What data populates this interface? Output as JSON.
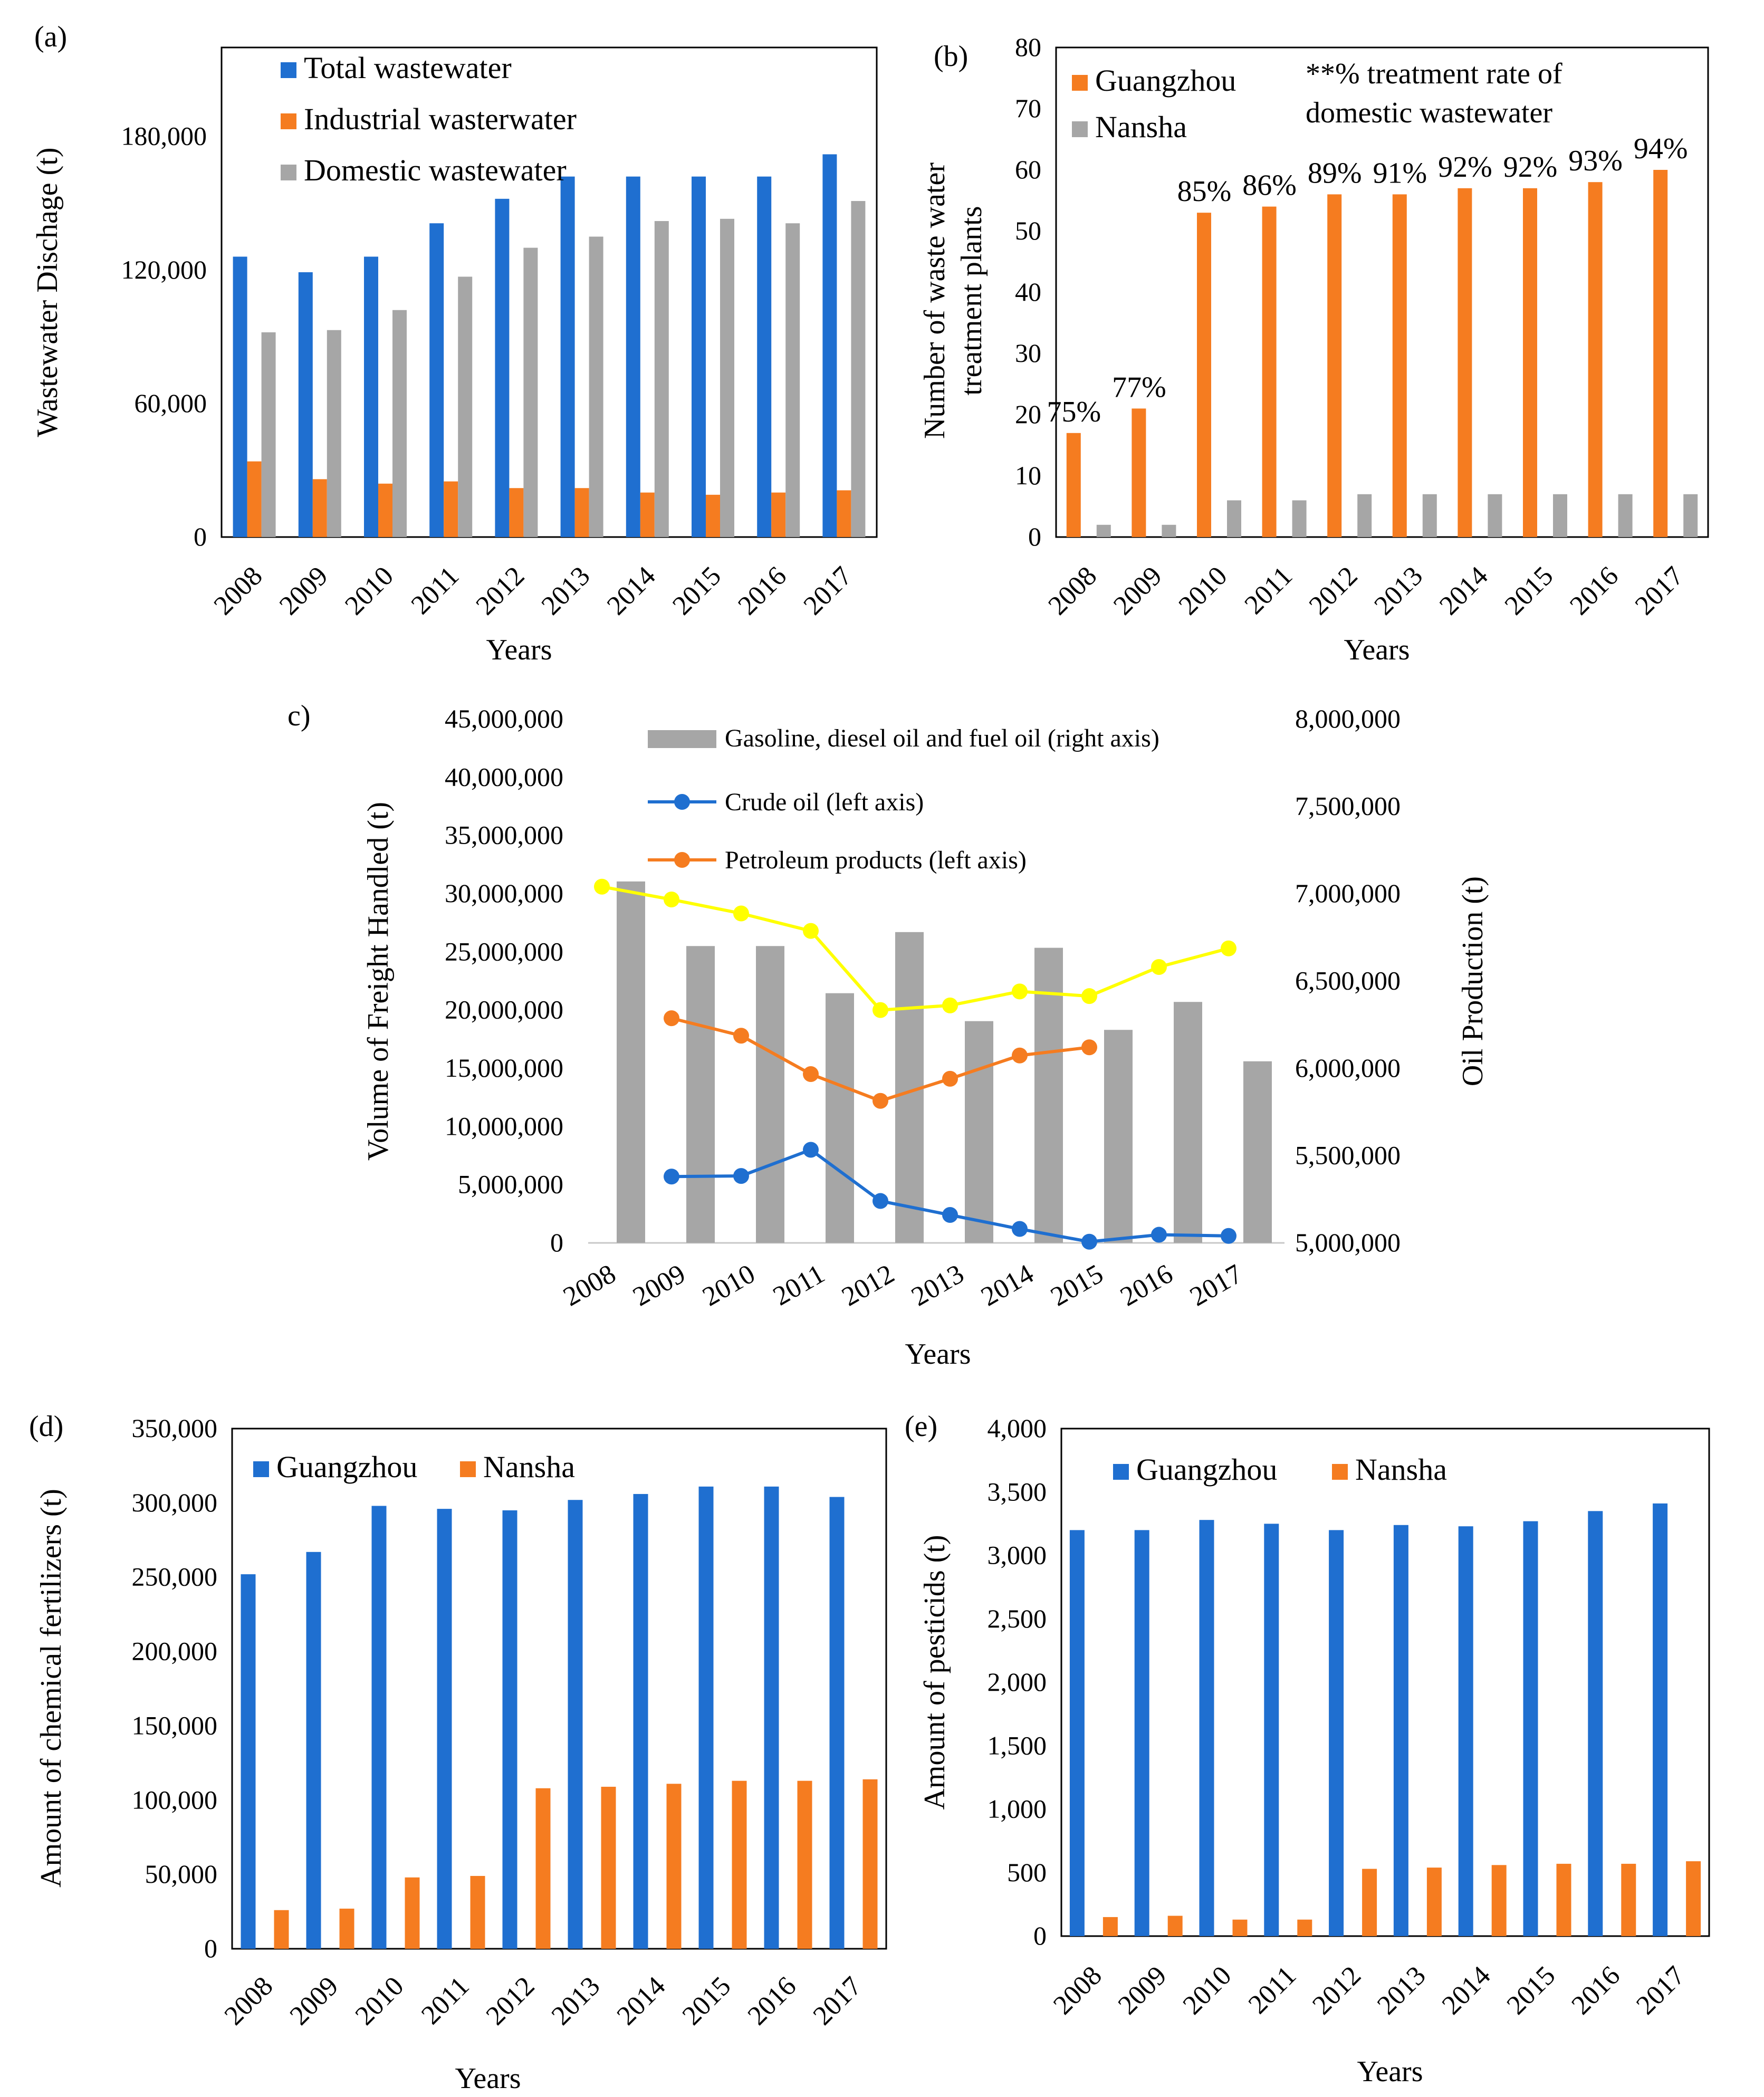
{
  "colors": {
    "blue": "#1f6fd0",
    "orange": "#f57c20",
    "gray": "#a6a6a6",
    "yellow": "#ffff00"
  },
  "chart_data": [
    {
      "id": "a",
      "panel_label": "(a)",
      "type": "bar",
      "categories": [
        "2008",
        "2009",
        "2010",
        "2011",
        "2012",
        "2013",
        "2014",
        "2015",
        "2016",
        "2017"
      ],
      "series": [
        {
          "name": "Total wastewater",
          "color": "#1f6fd0",
          "values": [
            126000,
            119000,
            126000,
            141000,
            152000,
            162000,
            162000,
            162000,
            162000,
            172000
          ]
        },
        {
          "name": "Industrial wasterwater",
          "color": "#f57c20",
          "values": [
            34000,
            26000,
            24000,
            25000,
            22000,
            22000,
            20000,
            19000,
            20000,
            21000
          ]
        },
        {
          "name": "Domestic wastewater",
          "color": "#a6a6a6",
          "values": [
            92000,
            93000,
            102000,
            117000,
            130000,
            135000,
            142000,
            143000,
            141000,
            151000
          ]
        }
      ],
      "y_ticks": [
        0,
        60000,
        120000,
        180000
      ],
      "y_tick_labels": [
        "0",
        "60,000",
        "120,000",
        "180,000"
      ],
      "ylim": [
        0,
        220000
      ],
      "xlabel": "Years",
      "ylabel": "Wastewater Dischage (t)",
      "legend": "top-left"
    },
    {
      "id": "b",
      "panel_label": "(b)",
      "type": "bar",
      "categories": [
        "2008",
        "2009",
        "2010",
        "2011",
        "2012",
        "2013",
        "2014",
        "2015",
        "2016",
        "2017"
      ],
      "series": [
        {
          "name": "Guangzhou",
          "color": "#f57c20",
          "values": [
            17,
            21,
            53,
            54,
            56,
            56,
            57,
            57,
            58,
            60
          ]
        },
        {
          "name": "Nansha",
          "color": "#a6a6a6",
          "values": [
            2,
            2,
            6,
            6,
            7,
            7,
            7,
            7,
            7,
            7
          ]
        }
      ],
      "data_labels": [
        "75%",
        "77%",
        "85%",
        "86%",
        "89%",
        "91%",
        "92%",
        "92%",
        "93%",
        "94%"
      ],
      "annotation": [
        "**% treatment rate of",
        "domestic wastewater"
      ],
      "y_ticks": [
        0,
        10,
        20,
        30,
        40,
        50,
        60,
        70,
        80
      ],
      "y_tick_labels": [
        "0",
        "10",
        "20",
        "30",
        "40",
        "50",
        "60",
        "70",
        "80"
      ],
      "ylim": [
        0,
        80
      ],
      "xlabel": "Years",
      "ylabel": [
        "Number of waste water",
        "treatment plants"
      ],
      "legend": "top-left"
    },
    {
      "id": "c",
      "panel_label": "c)",
      "type": "bar+line",
      "categories": [
        "2008",
        "2009",
        "2010",
        "2011",
        "2012",
        "2013",
        "2014",
        "2015",
        "2016",
        "2017"
      ],
      "bar_series": {
        "name": "Gasoline, diesel oil and fuel oil (right axis)",
        "axis": "right",
        "color": "#a6a6a6",
        "values": [
          7070000,
          6700000,
          6700000,
          6430000,
          6780000,
          6270000,
          6690000,
          6220000,
          6380000,
          6040000
        ]
      },
      "line_series": [
        {
          "name": "Crude oil (left axis)",
          "axis": "left",
          "color": "#1f6fd0",
          "values": [
            null,
            5700000,
            5750000,
            8000000,
            3600000,
            2400000,
            1200000,
            100000,
            700000,
            600000
          ]
        },
        {
          "name": "Petroleum products (left axis)",
          "axis": "left",
          "color": "#f57c20",
          "values": [
            null,
            19300000,
            17800000,
            14500000,
            12200000,
            14100000,
            16100000,
            16800000,
            null,
            null
          ]
        },
        {
          "name": "",
          "axis": "left",
          "color": "#ffff00",
          "values": [
            30600000,
            29500000,
            28300000,
            26800000,
            20000000,
            20400000,
            21600000,
            21200000,
            23700000,
            25300000
          ]
        }
      ],
      "y_left_ticks": [
        0,
        5000000,
        10000000,
        15000000,
        20000000,
        25000000,
        30000000,
        35000000,
        40000000,
        45000000
      ],
      "y_left_tick_labels": [
        "0",
        "5,000,000",
        "10,000,000",
        "15,000,000",
        "20,000,000",
        "25,000,000",
        "30,000,000",
        "35,000,000",
        "40,000,000",
        "45,000,000"
      ],
      "ylim_left": [
        0,
        45000000
      ],
      "y_right_ticks": [
        5000000,
        5500000,
        6000000,
        6500000,
        7000000,
        7500000,
        8000000
      ],
      "y_right_tick_labels": [
        "5,000,000",
        "5,500,000",
        "6,000,000",
        "6,500,000",
        "7,000,000",
        "7,500,000",
        "8,000,000"
      ],
      "ylim_right": [
        5000000,
        8000000
      ],
      "xlabel": "Years",
      "ylabel_left": "Volume of Freight Handled (t)",
      "ylabel_right": "Oil Production (t)",
      "legend": "top-right"
    },
    {
      "id": "d",
      "panel_label": "(d)",
      "type": "bar",
      "categories": [
        "2008",
        "2009",
        "2010",
        "2011",
        "2012",
        "2013",
        "2014",
        "2015",
        "2016",
        "2017"
      ],
      "series": [
        {
          "name": "Guangzhou",
          "color": "#1f6fd0",
          "values": [
            252000,
            267000,
            298000,
            296000,
            295000,
            302000,
            306000,
            311000,
            311000,
            304000
          ]
        },
        {
          "name": "Nansha",
          "color": "#f57c20",
          "values": [
            26000,
            27000,
            48000,
            49000,
            108000,
            109000,
            111000,
            113000,
            113000,
            114000
          ]
        }
      ],
      "y_ticks": [
        0,
        50000,
        100000,
        150000,
        200000,
        250000,
        300000,
        350000
      ],
      "y_tick_labels": [
        "0",
        "50,000",
        "100,000",
        "150,000",
        "200,000",
        "250,000",
        "300,000",
        "350,000"
      ],
      "ylim": [
        0,
        350000
      ],
      "xlabel": "Years",
      "ylabel": "Amount of chemical fertilizers (t)",
      "legend": "top-left"
    },
    {
      "id": "e",
      "panel_label": "(e)",
      "type": "bar",
      "categories": [
        "2008",
        "2009",
        "2010",
        "2011",
        "2012",
        "2013",
        "2014",
        "2015",
        "2016",
        "2017"
      ],
      "series": [
        {
          "name": "Guangzhou",
          "color": "#1f6fd0",
          "values": [
            3200,
            3200,
            3280,
            3250,
            3200,
            3240,
            3230,
            3270,
            3350,
            3410
          ]
        },
        {
          "name": "Nansha",
          "color": "#f57c20",
          "values": [
            150,
            160,
            130,
            130,
            530,
            540,
            560,
            570,
            570,
            590
          ]
        }
      ],
      "y_ticks": [
        0,
        500,
        1000,
        1500,
        2000,
        2500,
        3000,
        3500,
        4000
      ],
      "y_tick_labels": [
        "0",
        "500",
        "1,000",
        "1,500",
        "2,000",
        "2,500",
        "3,000",
        "3,500",
        "4,000"
      ],
      "ylim": [
        0,
        4000
      ],
      "xlabel": "Years",
      "ylabel": "Amount of pesticids (t)",
      "legend": "top-left"
    }
  ]
}
